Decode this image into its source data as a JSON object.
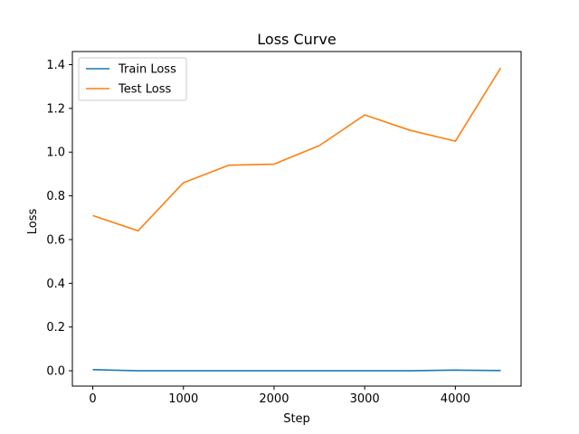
{
  "chart_data": {
    "type": "line",
    "title": "Loss Curve",
    "xlabel": "Step",
    "ylabel": "Loss",
    "xlim": [
      -225,
      4725
    ],
    "ylim": [
      -0.07,
      1.46
    ],
    "xticks": [
      0,
      1000,
      2000,
      3000,
      4000
    ],
    "xtick_labels": [
      "0",
      "1000",
      "2000",
      "3000",
      "4000"
    ],
    "yticks": [
      0.0,
      0.2,
      0.4,
      0.6,
      0.8,
      1.0,
      1.2,
      1.4
    ],
    "ytick_labels": [
      "0.0",
      "0.2",
      "0.4",
      "0.6",
      "0.8",
      "1.0",
      "1.2",
      "1.4"
    ],
    "grid": false,
    "legend_position": "top-left",
    "x": [
      0,
      500,
      1000,
      1500,
      2000,
      2500,
      3000,
      3500,
      4000,
      4500
    ],
    "series": [
      {
        "name": "Train Loss",
        "color": "#1f77b4",
        "values": [
          0.005,
          0.0,
          0.0,
          0.0,
          0.0,
          0.0,
          0.0,
          0.0,
          0.003,
          0.001
        ]
      },
      {
        "name": "Test Loss",
        "color": "#ff7f0e",
        "values": [
          0.71,
          0.64,
          0.86,
          0.94,
          0.945,
          1.03,
          1.17,
          1.1,
          1.05,
          1.385
        ]
      }
    ]
  }
}
